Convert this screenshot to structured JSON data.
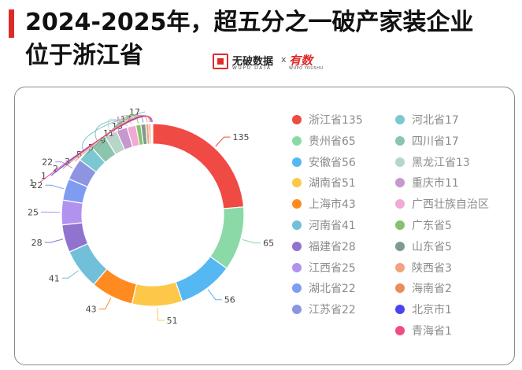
{
  "header": {
    "title_line1": "2024-2025年，超五分之一破产家装企业",
    "title_line2": "位于浙江省",
    "brand_name": "无破数据",
    "brand_sub": "WUPO DATA",
    "brand_x": "x",
    "partner_name": "有数",
    "partner_sub": "WUPO YOUSHU"
  },
  "chart_data": {
    "type": "pie",
    "donut": true,
    "categories": [
      "浙江省",
      "贵州省",
      "安徽省",
      "湖南省",
      "上海市",
      "河南省",
      "福建省",
      "江西省",
      "湖北省",
      "江苏省",
      "河北省",
      "四川省",
      "黑龙江省",
      "重庆市",
      "广西壮族自治区",
      "广东省",
      "山东省",
      "陕西省",
      "海南省",
      "北京市",
      "青海省"
    ],
    "values": [
      135,
      65,
      56,
      51,
      43,
      41,
      28,
      25,
      22,
      22,
      17,
      17,
      13,
      11,
      9,
      5,
      5,
      3,
      2,
      1,
      1
    ],
    "colors": [
      "#f04a44",
      "#8ad9a6",
      "#55b8f2",
      "#fdc74a",
      "#ff8a1f",
      "#72bfd9",
      "#8f73cf",
      "#b193ef",
      "#7f9df0",
      "#8d95e2",
      "#7cc8d2",
      "#8dc4ae",
      "#b5d6c9",
      "#c797cf",
      "#f2a9d3",
      "#86c170",
      "#7d9c8e",
      "#f3a181",
      "#ef8a5d",
      "#4b45f0",
      "#ef4c87"
    ],
    "legend": [
      "浙江省135",
      "贵州省65",
      "安徽省56",
      "湖南省51",
      "上海市43",
      "河南省41",
      "福建省28",
      "江西省25",
      "湖北省22",
      "江苏省22",
      "河北省17",
      "四川省17",
      "黑龙江省13",
      "重庆市11",
      "广西壮族自治区",
      "广东省5",
      "山东省5",
      "陕西省3",
      "海南省2",
      "北京市1",
      "青海省1"
    ],
    "slice_labels": [
      "135",
      "65",
      "56",
      "51",
      "43",
      "41",
      "28",
      "25",
      "22",
      "22",
      "17",
      "17",
      "13",
      "11",
      "9",
      "5",
      "5",
      "3",
      "2",
      "1",
      "1"
    ],
    "legend_position": "right"
  }
}
